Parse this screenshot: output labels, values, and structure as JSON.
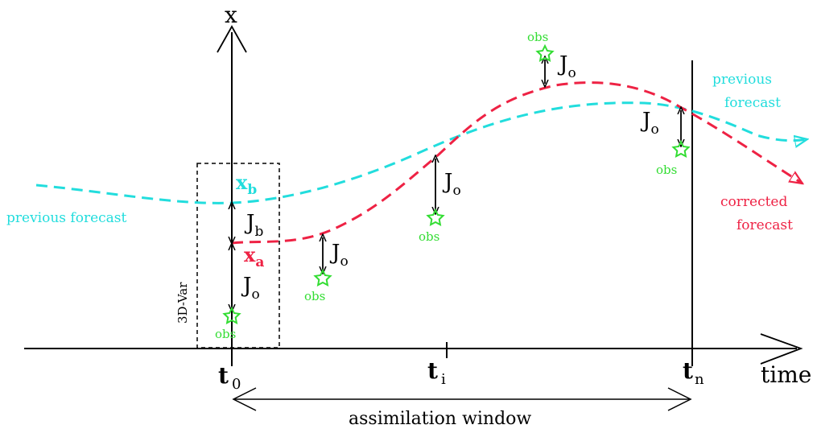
{
  "axes": {
    "y_label": "x",
    "x_label": "time",
    "ticks": [
      {
        "main": "t",
        "sub": "0"
      },
      {
        "main": "t",
        "sub": "i"
      },
      {
        "main": "t",
        "sub": "n"
      }
    ]
  },
  "curves": {
    "previous_forecast_left": "previous forecast",
    "previous_forecast_right_line1": "previous",
    "previous_forecast_right_line2": "forecast",
    "corrected_line1": "corrected",
    "corrected_line2": "forecast"
  },
  "labels": {
    "xb_main": "x",
    "xb_sub": "b",
    "xa_main": "x",
    "xa_sub": "a",
    "jb_main": "J",
    "jb_sub": "b",
    "jo_main": "J",
    "jo_sub": "o",
    "obs": "obs",
    "three_d_var": "3D-Var",
    "assimilation_window": "assimilation window"
  },
  "colors": {
    "background": "#22dddd",
    "analysis": "#ee2244",
    "observation": "#33dd33",
    "axis": "#000000"
  }
}
